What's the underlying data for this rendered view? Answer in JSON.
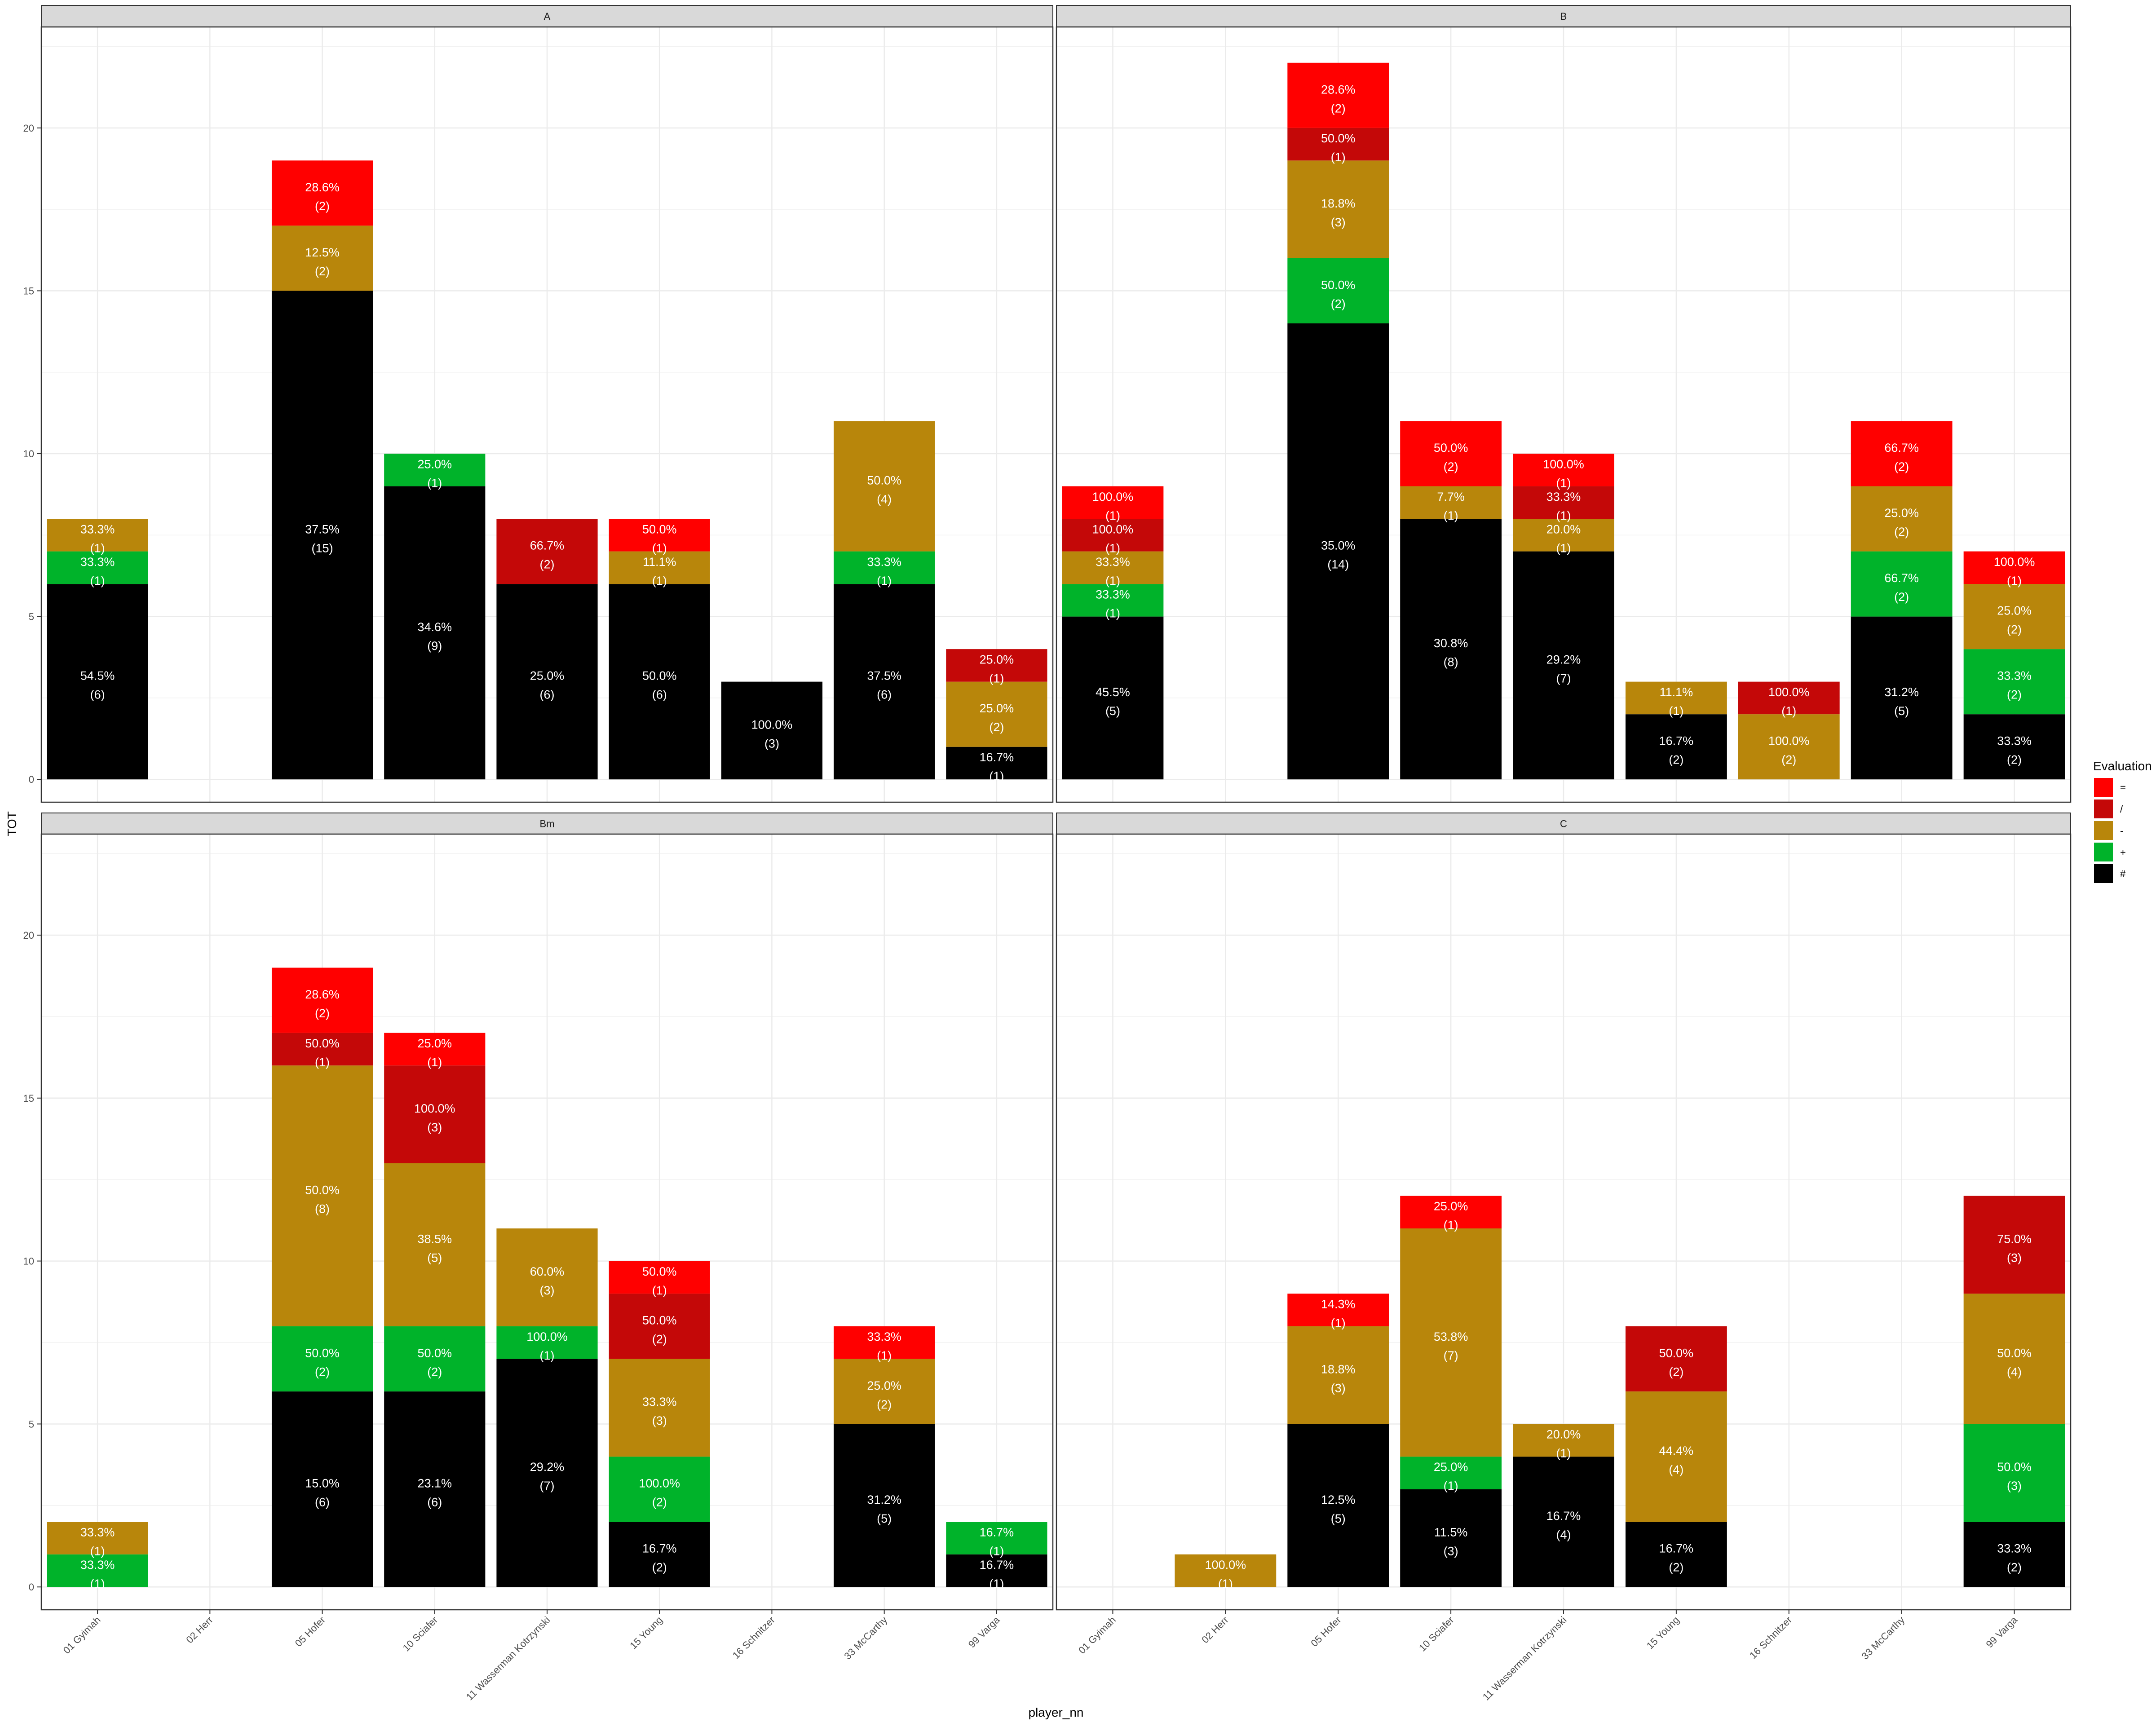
{
  "chart_data": {
    "type": "bar",
    "stacked": true,
    "xlabel": "player_nn",
    "ylabel": "TOT",
    "ylim": [
      -0.7,
      23.1
    ],
    "yticks": [
      0,
      5,
      10,
      15,
      20
    ],
    "grid": true,
    "legend": {
      "title": "Evaluation",
      "position": "right",
      "items": [
        {
          "key": "=",
          "color": "#FF0000"
        },
        {
          "key": "/",
          "color": "#C40808"
        },
        {
          "key": "-",
          "color": "#B8860B"
        },
        {
          "key": "+",
          "color": "#00B32A"
        },
        {
          "key": "#",
          "color": "#000000"
        }
      ]
    },
    "categories": [
      "01 Gyimah",
      "02 Herr",
      "05 Hofer",
      "10 Sciafer",
      "11 Wasserman Kotrzynski",
      "15 Young",
      "16 Schnitzer",
      "33 McCarthy",
      "99 Varga"
    ],
    "stack_order": [
      "#",
      "+",
      "-",
      "/",
      "="
    ],
    "panels": [
      {
        "name": "A",
        "bars": [
          {
            "category": "01 Gyimah",
            "segments": [
              {
                "eval": "#",
                "count": 6,
                "pct": "54.5%"
              },
              {
                "eval": "+",
                "count": 1,
                "pct": "33.3%"
              },
              {
                "eval": "-",
                "count": 1,
                "pct": "33.3%"
              }
            ]
          },
          {
            "category": "02 Herr",
            "segments": []
          },
          {
            "category": "05 Hofer",
            "segments": [
              {
                "eval": "#",
                "count": 15,
                "pct": "37.5%"
              },
              {
                "eval": "-",
                "count": 2,
                "pct": "12.5%"
              },
              {
                "eval": "=",
                "count": 2,
                "pct": "28.6%"
              }
            ]
          },
          {
            "category": "10 Sciafer",
            "segments": [
              {
                "eval": "#",
                "count": 9,
                "pct": "34.6%"
              },
              {
                "eval": "+",
                "count": 1,
                "pct": "25.0%"
              }
            ]
          },
          {
            "category": "11 Wasserman Kotrzynski",
            "segments": [
              {
                "eval": "#",
                "count": 6,
                "pct": "25.0%"
              },
              {
                "eval": "/",
                "count": 2,
                "pct": "66.7%"
              }
            ]
          },
          {
            "category": "15 Young",
            "segments": [
              {
                "eval": "#",
                "count": 6,
                "pct": "50.0%"
              },
              {
                "eval": "-",
                "count": 1,
                "pct": "11.1%"
              },
              {
                "eval": "=",
                "count": 1,
                "pct": "50.0%"
              }
            ]
          },
          {
            "category": "16 Schnitzer",
            "segments": [
              {
                "eval": "#",
                "count": 3,
                "pct": "100.0%"
              }
            ]
          },
          {
            "category": "33 McCarthy",
            "segments": [
              {
                "eval": "#",
                "count": 6,
                "pct": "37.5%"
              },
              {
                "eval": "+",
                "count": 1,
                "pct": "33.3%"
              },
              {
                "eval": "-",
                "count": 4,
                "pct": "50.0%"
              }
            ]
          },
          {
            "category": "99 Varga",
            "segments": [
              {
                "eval": "#",
                "count": 1,
                "pct": "16.7%"
              },
              {
                "eval": "-",
                "count": 2,
                "pct": "25.0%"
              },
              {
                "eval": "/",
                "count": 1,
                "pct": "25.0%"
              }
            ]
          }
        ]
      },
      {
        "name": "B",
        "bars": [
          {
            "category": "01 Gyimah",
            "segments": [
              {
                "eval": "#",
                "count": 5,
                "pct": "45.5%"
              },
              {
                "eval": "+",
                "count": 1,
                "pct": "33.3%"
              },
              {
                "eval": "-",
                "count": 1,
                "pct": "33.3%"
              },
              {
                "eval": "/",
                "count": 1,
                "pct": "100.0%"
              },
              {
                "eval": "=",
                "count": 1,
                "pct": "100.0%"
              }
            ]
          },
          {
            "category": "02 Herr",
            "segments": []
          },
          {
            "category": "05 Hofer",
            "segments": [
              {
                "eval": "#",
                "count": 14,
                "pct": "35.0%"
              },
              {
                "eval": "+",
                "count": 2,
                "pct": "50.0%"
              },
              {
                "eval": "-",
                "count": 3,
                "pct": "18.8%"
              },
              {
                "eval": "/",
                "count": 1,
                "pct": "50.0%"
              },
              {
                "eval": "=",
                "count": 2,
                "pct": "28.6%"
              }
            ]
          },
          {
            "category": "10 Sciafer",
            "segments": [
              {
                "eval": "#",
                "count": 8,
                "pct": "30.8%"
              },
              {
                "eval": "-",
                "count": 1,
                "pct": "7.7%"
              },
              {
                "eval": "=",
                "count": 2,
                "pct": "50.0%"
              }
            ]
          },
          {
            "category": "11 Wasserman Kotrzynski",
            "segments": [
              {
                "eval": "#",
                "count": 7,
                "pct": "29.2%"
              },
              {
                "eval": "-",
                "count": 1,
                "pct": "20.0%"
              },
              {
                "eval": "/",
                "count": 1,
                "pct": "33.3%"
              },
              {
                "eval": "=",
                "count": 1,
                "pct": "100.0%"
              }
            ]
          },
          {
            "category": "15 Young",
            "segments": [
              {
                "eval": "#",
                "count": 2,
                "pct": "16.7%"
              },
              {
                "eval": "-",
                "count": 1,
                "pct": "11.1%"
              }
            ]
          },
          {
            "category": "16 Schnitzer",
            "segments": [
              {
                "eval": "-",
                "count": 2,
                "pct": "100.0%"
              },
              {
                "eval": "/",
                "count": 1,
                "pct": "100.0%"
              }
            ]
          },
          {
            "category": "33 McCarthy",
            "segments": [
              {
                "eval": "#",
                "count": 5,
                "pct": "31.2%"
              },
              {
                "eval": "+",
                "count": 2,
                "pct": "66.7%"
              },
              {
                "eval": "-",
                "count": 2,
                "pct": "25.0%"
              },
              {
                "eval": "=",
                "count": 2,
                "pct": "66.7%"
              }
            ]
          },
          {
            "category": "99 Varga",
            "segments": [
              {
                "eval": "#",
                "count": 2,
                "pct": "33.3%"
              },
              {
                "eval": "+",
                "count": 2,
                "pct": "33.3%"
              },
              {
                "eval": "-",
                "count": 2,
                "pct": "25.0%"
              },
              {
                "eval": "=",
                "count": 1,
                "pct": "100.0%"
              }
            ]
          }
        ]
      },
      {
        "name": "Bm",
        "bars": [
          {
            "category": "01 Gyimah",
            "segments": [
              {
                "eval": "+",
                "count": 1,
                "pct": "33.3%"
              },
              {
                "eval": "-",
                "count": 1,
                "pct": "33.3%"
              }
            ]
          },
          {
            "category": "02 Herr",
            "segments": []
          },
          {
            "category": "05 Hofer",
            "segments": [
              {
                "eval": "#",
                "count": 6,
                "pct": "15.0%"
              },
              {
                "eval": "+",
                "count": 2,
                "pct": "50.0%"
              },
              {
                "eval": "-",
                "count": 8,
                "pct": "50.0%"
              },
              {
                "eval": "/",
                "count": 1,
                "pct": "50.0%"
              },
              {
                "eval": "=",
                "count": 2,
                "pct": "28.6%"
              }
            ]
          },
          {
            "category": "10 Sciafer",
            "segments": [
              {
                "eval": "#",
                "count": 6,
                "pct": "23.1%"
              },
              {
                "eval": "+",
                "count": 2,
                "pct": "50.0%"
              },
              {
                "eval": "-",
                "count": 5,
                "pct": "38.5%"
              },
              {
                "eval": "/",
                "count": 3,
                "pct": "100.0%"
              },
              {
                "eval": "=",
                "count": 1,
                "pct": "25.0%"
              }
            ]
          },
          {
            "category": "11 Wasserman Kotrzynski",
            "segments": [
              {
                "eval": "#",
                "count": 7,
                "pct": "29.2%"
              },
              {
                "eval": "+",
                "count": 1,
                "pct": "100.0%"
              },
              {
                "eval": "-",
                "count": 3,
                "pct": "60.0%"
              }
            ]
          },
          {
            "category": "15 Young",
            "segments": [
              {
                "eval": "#",
                "count": 2,
                "pct": "16.7%"
              },
              {
                "eval": "+",
                "count": 2,
                "pct": "100.0%"
              },
              {
                "eval": "-",
                "count": 3,
                "pct": "33.3%"
              },
              {
                "eval": "/",
                "count": 2,
                "pct": "50.0%"
              },
              {
                "eval": "=",
                "count": 1,
                "pct": "50.0%"
              }
            ]
          },
          {
            "category": "16 Schnitzer",
            "segments": []
          },
          {
            "category": "33 McCarthy",
            "segments": [
              {
                "eval": "#",
                "count": 5,
                "pct": "31.2%"
              },
              {
                "eval": "-",
                "count": 2,
                "pct": "25.0%"
              },
              {
                "eval": "=",
                "count": 1,
                "pct": "33.3%"
              }
            ]
          },
          {
            "category": "99 Varga",
            "segments": [
              {
                "eval": "#",
                "count": 1,
                "pct": "16.7%"
              },
              {
                "eval": "+",
                "count": 1,
                "pct": "16.7%"
              }
            ]
          }
        ]
      },
      {
        "name": "C",
        "bars": [
          {
            "category": "01 Gyimah",
            "segments": []
          },
          {
            "category": "02 Herr",
            "segments": [
              {
                "eval": "-",
                "count": 1,
                "pct": "100.0%"
              }
            ]
          },
          {
            "category": "05 Hofer",
            "segments": [
              {
                "eval": "#",
                "count": 5,
                "pct": "12.5%"
              },
              {
                "eval": "-",
                "count": 3,
                "pct": "18.8%"
              },
              {
                "eval": "=",
                "count": 1,
                "pct": "14.3%"
              }
            ]
          },
          {
            "category": "10 Sciafer",
            "segments": [
              {
                "eval": "#",
                "count": 3,
                "pct": "11.5%"
              },
              {
                "eval": "+",
                "count": 1,
                "pct": "25.0%"
              },
              {
                "eval": "-",
                "count": 7,
                "pct": "53.8%"
              },
              {
                "eval": "=",
                "count": 1,
                "pct": "25.0%"
              }
            ]
          },
          {
            "category": "11 Wasserman Kotrzynski",
            "segments": [
              {
                "eval": "#",
                "count": 4,
                "pct": "16.7%"
              },
              {
                "eval": "-",
                "count": 1,
                "pct": "20.0%"
              }
            ]
          },
          {
            "category": "15 Young",
            "segments": [
              {
                "eval": "#",
                "count": 2,
                "pct": "16.7%"
              },
              {
                "eval": "-",
                "count": 4,
                "pct": "44.4%"
              },
              {
                "eval": "/",
                "count": 2,
                "pct": "50.0%"
              }
            ]
          },
          {
            "category": "16 Schnitzer",
            "segments": []
          },
          {
            "category": "33 McCarthy",
            "segments": []
          },
          {
            "category": "99 Varga",
            "segments": [
              {
                "eval": "#",
                "count": 2,
                "pct": "33.3%"
              },
              {
                "eval": "+",
                "count": 3,
                "pct": "50.0%"
              },
              {
                "eval": "-",
                "count": 4,
                "pct": "50.0%"
              },
              {
                "eval": "/",
                "count": 3,
                "pct": "75.0%"
              }
            ]
          }
        ]
      }
    ]
  }
}
